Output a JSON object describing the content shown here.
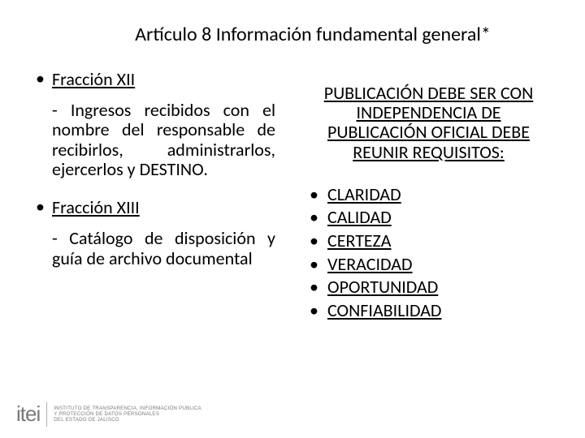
{
  "title": "Artículo 8 Información fundamental general*",
  "left": {
    "fraccion12_label": "Fracción XII",
    "fraccion12_body": "- Ingresos recibidos con el nombre del responsable de recibirlos, administrarlos, ejercerlos y DESTINO.",
    "fraccion13_label": "Fracción XIII",
    "fraccion13_body": "- Catálogo de disposición y guía de archivo documental"
  },
  "right": {
    "heading": "PUBLICACIÓN DEBE SER CON INDEPENDENCIA DE PUBLICACIÓN OFICIAL DEBE REUNIR REQUISITOS:",
    "items": [
      "CLARIDAD",
      "CALIDAD",
      "CERTEZA",
      "VERACIDAD",
      "OPORTUNIDAD",
      "CONFIABILIDAD"
    ]
  },
  "footer": {
    "mark": "itei",
    "line1": "INSTITUTO DE TRANSPARENCIA, INFORMACIÓN PÚBLICA",
    "line2": "Y PROTECCIÓN DE DATOS PERSONALES",
    "line3": "DEL ESTADO DE JALISCO"
  },
  "colors": {
    "text": "#000000",
    "background": "#ffffff",
    "footer_text": "#7a7a7a",
    "footer_sep": "#b0b0b0"
  },
  "typography": {
    "title_fontsize": 24,
    "body_fontsize": 22,
    "footer_mark_fontsize": 26,
    "footer_text_fontsize": 6.2
  }
}
